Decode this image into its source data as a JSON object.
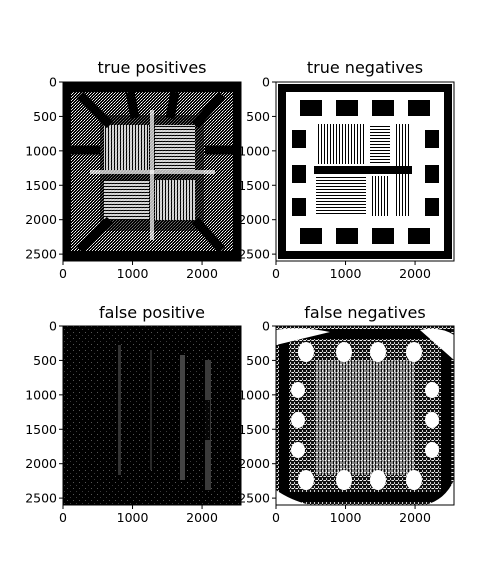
{
  "panels": [
    {
      "title": "true positives",
      "x_ticks": [
        "0",
        "1000",
        "2000"
      ],
      "y_ticks": [
        "0",
        "500",
        "1000",
        "1500",
        "2000",
        "2500"
      ],
      "xlim": [
        0,
        2560
      ],
      "ylim": [
        2600,
        0
      ],
      "colormap": "gray"
    },
    {
      "title": "true negatives",
      "x_ticks": [
        "0",
        "1000",
        "2000"
      ],
      "y_ticks": [
        "0",
        "500",
        "1000",
        "1500",
        "2000",
        "2500"
      ],
      "xlim": [
        0,
        2560
      ],
      "ylim": [
        2600,
        0
      ],
      "colormap": "gray"
    },
    {
      "title": "false positive",
      "x_ticks": [
        "0",
        "1000",
        "2000"
      ],
      "y_ticks": [
        "0",
        "500",
        "1000",
        "1500",
        "2000",
        "2500"
      ],
      "xlim": [
        0,
        2560
      ],
      "ylim": [
        2600,
        0
      ],
      "colormap": "gray"
    },
    {
      "title": "false negatives",
      "x_ticks": [
        "0",
        "1000",
        "2000"
      ],
      "y_ticks": [
        "0",
        "500",
        "1000",
        "1500",
        "2000",
        "2500"
      ],
      "xlim": [
        0,
        2560
      ],
      "ylim": [
        2600,
        0
      ],
      "colormap": "gray"
    }
  ],
  "colors": {
    "background": "#ffffff",
    "ink": "#000000",
    "image_dark": "#000000",
    "image_light": "#ffffff"
  }
}
